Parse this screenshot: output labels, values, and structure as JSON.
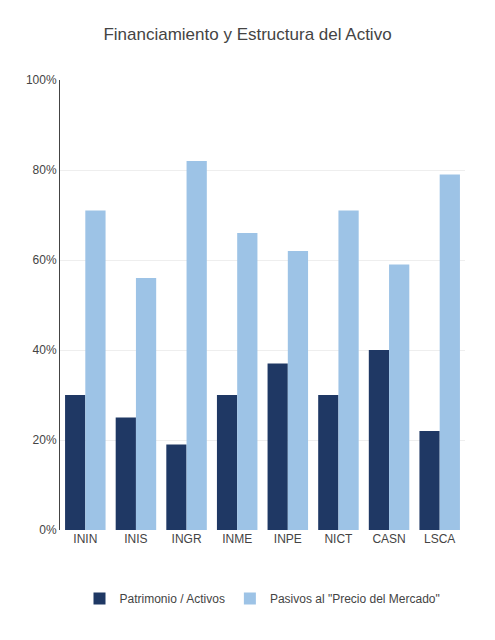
{
  "chart_data": {
    "type": "bar",
    "title": "Financiamiento y Estructura del Activo",
    "categories": [
      "ININ",
      "INIS",
      "INGR",
      "INME",
      "INPE",
      "NICT",
      "CASN",
      "LSCA"
    ],
    "series": [
      {
        "name": "Patrimonio / Activos",
        "color": "#1f3864",
        "values": [
          30,
          25,
          19,
          30,
          37,
          30,
          40,
          22
        ]
      },
      {
        "name": "Pasivos al \"Precio del Mercado\"",
        "color": "#9dc3e6",
        "values": [
          71,
          56,
          82,
          66,
          62,
          71,
          59,
          79
        ]
      }
    ],
    "ylim": [
      0,
      100
    ],
    "yticks": [
      {
        "value": 0,
        "label": "0%"
      },
      {
        "value": 20,
        "label": "20%"
      },
      {
        "value": 40,
        "label": "40%"
      },
      {
        "value": 60,
        "label": "60%"
      },
      {
        "value": 80,
        "label": "80%"
      },
      {
        "value": 100,
        "label": "100%"
      }
    ],
    "grid": true,
    "legend": "bottom"
  }
}
